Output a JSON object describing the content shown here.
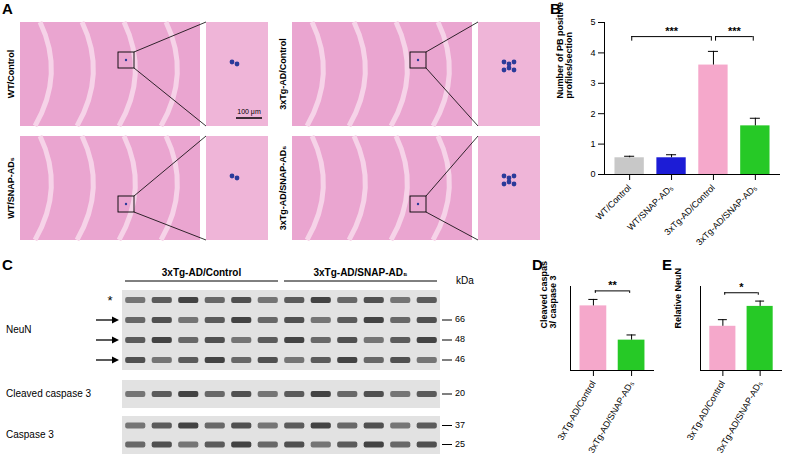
{
  "chart_data": [
    {
      "panel": "B",
      "type": "bar",
      "categories": [
        "WT/Control",
        "WT/SNAP-AD₅",
        "3xTg-AD/Control",
        "3xTg-AD/SNAP-AD₅"
      ],
      "values": [
        0.55,
        0.55,
        3.6,
        1.6
      ],
      "errors": [
        0.05,
        0.1,
        0.45,
        0.25
      ],
      "colors": [
        "#c8c8c8",
        "#1c1cd6",
        "#f5a8cb",
        "#26c926"
      ],
      "y_label": "Number of PB positive profiles/section",
      "ylim": [
        0,
        5
      ],
      "yticks": [
        0,
        1,
        2,
        3,
        4,
        5
      ],
      "significance": [
        {
          "from": "WT/Control",
          "to": "3xTg-AD/Control",
          "label": "***"
        },
        {
          "from": "3xTg-AD/Control",
          "to": "3xTg-AD/SNAP-AD₅",
          "label": "***"
        }
      ]
    },
    {
      "panel": "D",
      "type": "bar",
      "categories": [
        "3xTg-AD/Control",
        "3xTg-AD/SNAP-AD₅"
      ],
      "values": [
        100,
        47
      ],
      "errors": [
        10,
        8
      ],
      "colors": [
        "#f5a8cb",
        "#26c926"
      ],
      "y_label": "Cleaved caspas 3/ caspase 3",
      "ylim": [
        0,
        130
      ],
      "yticks": [],
      "tick_labels": "x",
      "significance": [
        {
          "from": "3xTg-AD/Control",
          "to": "3xTg-AD/SNAP-AD₅",
          "label": "**"
        }
      ]
    },
    {
      "panel": "E",
      "type": "bar",
      "categories": [
        "3xTg-AD/Control",
        "3xTg-AD/SNAP-AD₅"
      ],
      "values": [
        100,
        145
      ],
      "errors": [
        15,
        12
      ],
      "colors": [
        "#f5a8cb",
        "#26c926"
      ],
      "y_label": "Relative NeuN",
      "ylim": [
        0,
        190
      ],
      "yticks": [],
      "tick_labels": "x",
      "significance": [
        {
          "from": "3xTg-AD/Control",
          "to": "3xTg-AD/SNAP-AD₅",
          "label": "*"
        }
      ]
    }
  ],
  "panel_A": {
    "panel": "A",
    "images": [
      "WT/Control",
      "WT/SNAP-AD₅",
      "3xTg-AD/Control",
      "3xTg-AD/SNAP-AD₅"
    ],
    "scale_bar": "100 μm"
  },
  "panel_C": {
    "panel": "C",
    "groups": [
      {
        "label": "3xTg-AD/Control",
        "lanes": 6
      },
      {
        "label": "3xTg-AD/SNAP-AD₅",
        "lanes": 6
      }
    ],
    "unit": "kDa",
    "blots": [
      {
        "label": "NeuN",
        "markers": [
          66,
          48,
          46
        ],
        "arrows": 3,
        "asterisk": "*"
      },
      {
        "label": "Cleaved caspase 3",
        "markers": [
          20
        ]
      },
      {
        "label": "Caspase 3",
        "markers": [
          37,
          25
        ]
      }
    ]
  }
}
